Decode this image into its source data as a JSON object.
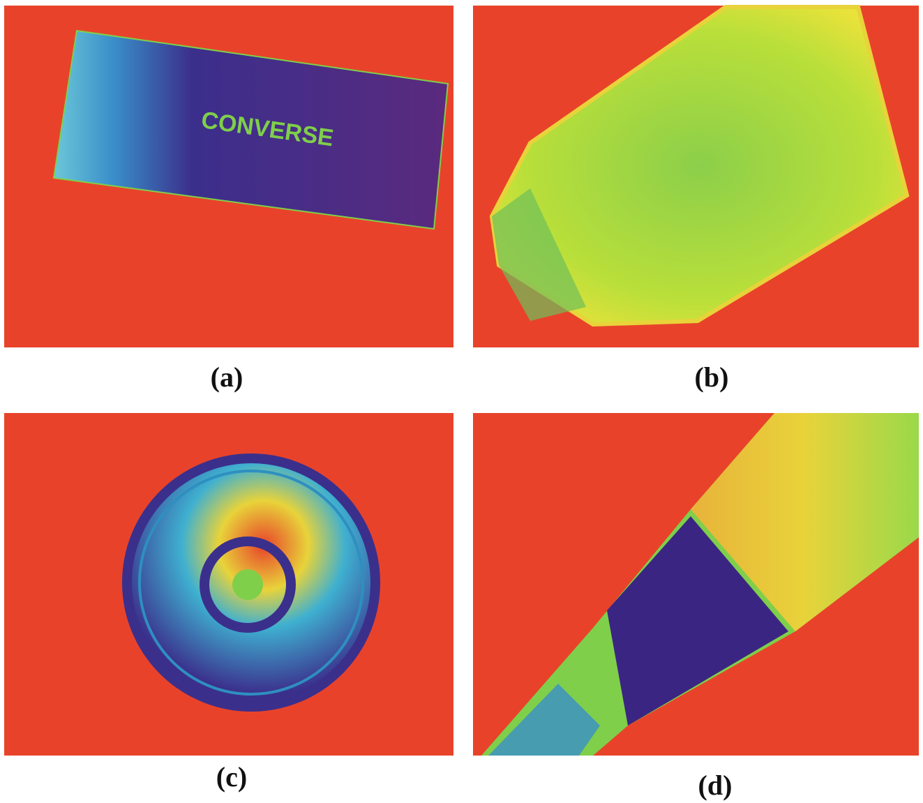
{
  "panels": [
    {
      "caption": "(a)",
      "text": "CONVERSE"
    },
    {
      "caption": "(b)"
    },
    {
      "caption": "(c)"
    },
    {
      "caption": "(d)"
    }
  ]
}
